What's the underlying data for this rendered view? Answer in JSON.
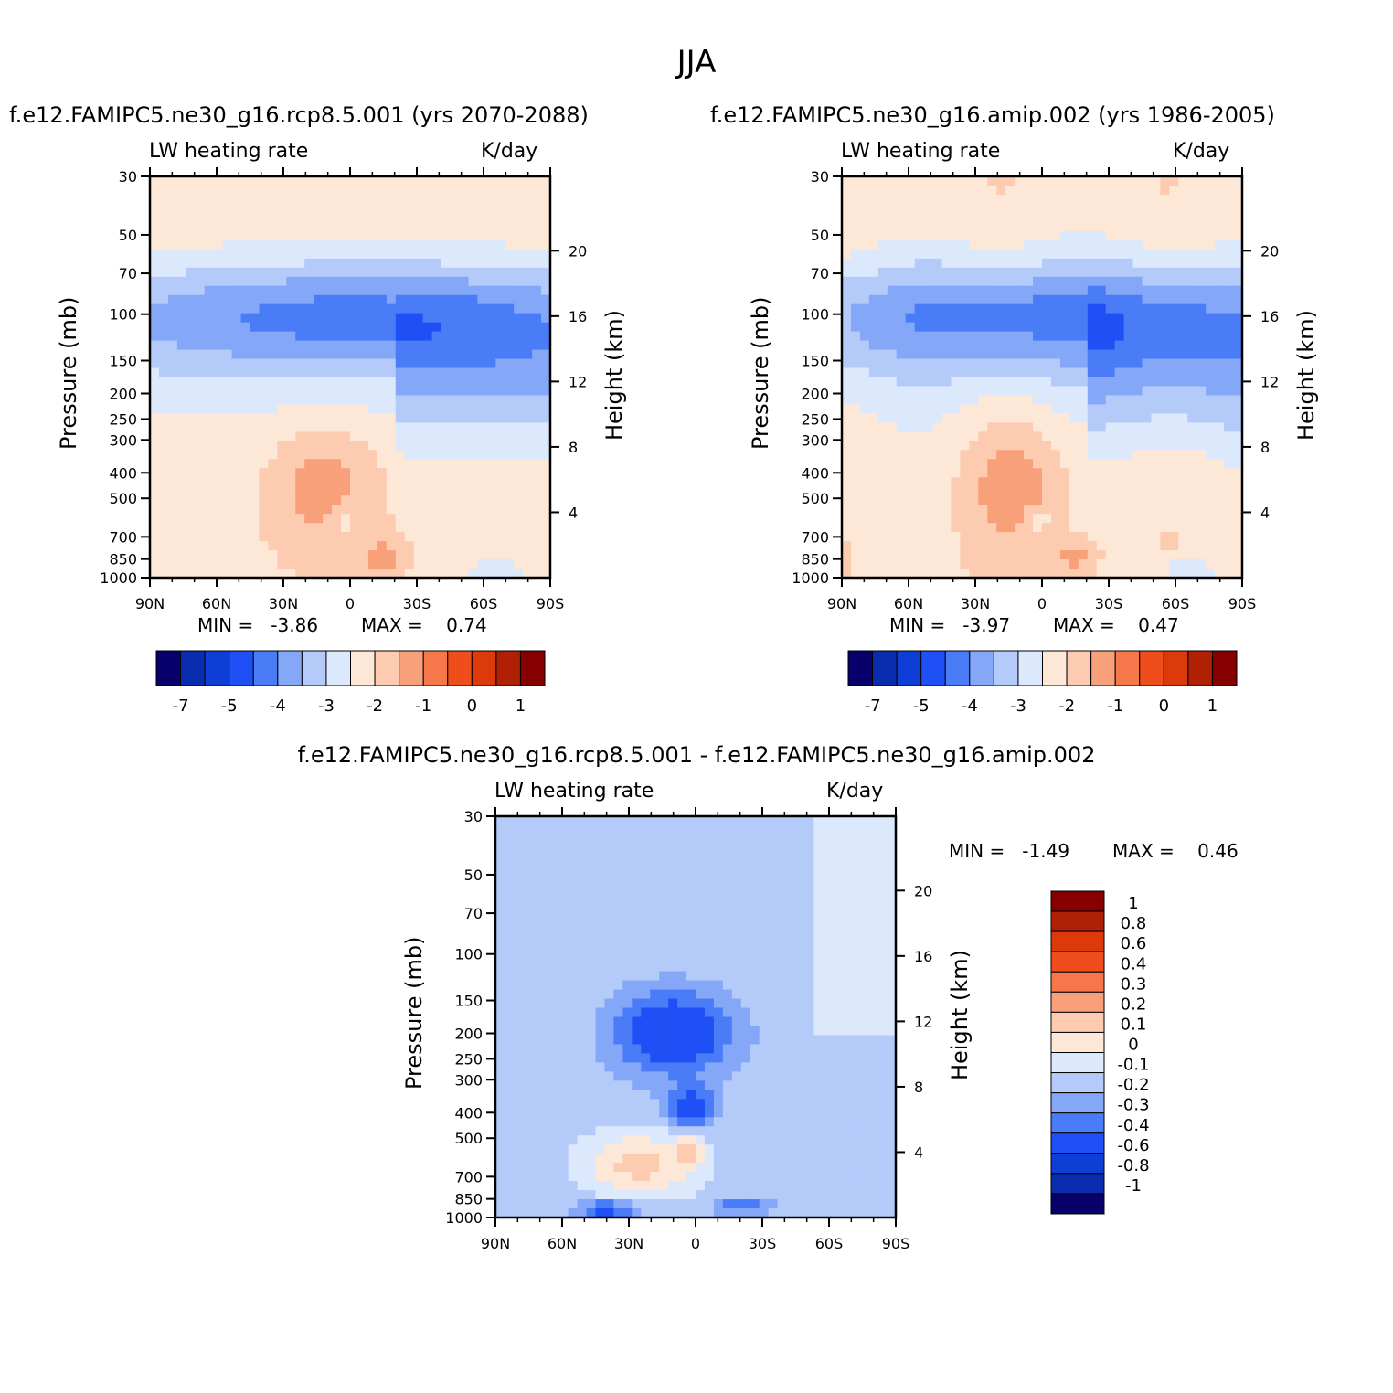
{
  "figure": {
    "title": "JJA",
    "panels": [
      {
        "id": "rcp",
        "subtitle": "f.e12.FAMIPC5.ne30_g16.rcp8.5.001 (yrs 2070-2088)",
        "left_label": "LW heating rate",
        "right_label": "K/day",
        "y_label": "Pressure (mb)",
        "y2_label": "Height (km)",
        "min_text": "MIN =   -3.86",
        "max_text": "MAX =    0.74"
      },
      {
        "id": "amip",
        "subtitle": "f.e12.FAMIPC5.ne30_g16.amip.002 (yrs 1986-2005)",
        "left_label": "LW heating rate",
        "right_label": "K/day",
        "y_label": "Pressure (mb)",
        "y2_label": "Height (km)",
        "min_text": "MIN =   -3.97",
        "max_text": "MAX =    0.47"
      },
      {
        "id": "diff",
        "subtitle": "f.e12.FAMIPC5.ne30_g16.rcp8.5.001 - f.e12.FAMIPC5.ne30_g16.amip.002",
        "left_label": "LW heating rate",
        "right_label": "K/day",
        "y_label": "Pressure (mb)",
        "y2_label": "Height (km)",
        "min_text": "MIN =   -1.49",
        "max_text": "MAX =    0.46"
      }
    ]
  },
  "chart_data": [
    {
      "type": "heatmap",
      "panel": "rcp",
      "x_ticks": [
        "90N",
        "60N",
        "30N",
        "0",
        "30S",
        "60S",
        "90S"
      ],
      "y_ticks": [
        "30",
        "50",
        "70",
        "100",
        "150",
        "200",
        "250",
        "300",
        "400",
        "500",
        "700",
        "850",
        "1000"
      ],
      "y_values": [
        30,
        50,
        70,
        100,
        150,
        200,
        250,
        300,
        400,
        500,
        700,
        850,
        1000
      ],
      "y2_ticks": [
        "20",
        "16",
        "12",
        "8",
        "4"
      ],
      "y2_values": [
        20,
        16,
        12,
        8,
        4
      ],
      "ylim": [
        1000,
        30
      ],
      "colorbar_labels": [
        "-7",
        "-5",
        "-4",
        "-3",
        "-2",
        "-1",
        "0",
        "1"
      ],
      "colorbar_colors": [
        "#08006b",
        "#0a2db0",
        "#0d3fd6",
        "#1e50f5",
        "#4a7cf7",
        "#84a7f7",
        "#b4cbfa",
        "#dce8fc",
        "#fde8d8",
        "#fccbb0",
        "#f7a07a",
        "#f5774a",
        "#f04d1c",
        "#dc3a0a",
        "#b02005",
        "#870000"
      ],
      "min": -3.86,
      "max": 0.74
    },
    {
      "type": "heatmap",
      "panel": "amip",
      "x_ticks": [
        "90N",
        "60N",
        "30N",
        "0",
        "30S",
        "60S",
        "90S"
      ],
      "y_ticks": [
        "30",
        "50",
        "70",
        "100",
        "150",
        "200",
        "250",
        "300",
        "400",
        "500",
        "700",
        "850",
        "1000"
      ],
      "y_values": [
        30,
        50,
        70,
        100,
        150,
        200,
        250,
        300,
        400,
        500,
        700,
        850,
        1000
      ],
      "y2_ticks": [
        "20",
        "16",
        "12",
        "8",
        "4"
      ],
      "y2_values": [
        20,
        16,
        12,
        8,
        4
      ],
      "ylim": [
        1000,
        30
      ],
      "colorbar_labels": [
        "-7",
        "-5",
        "-4",
        "-3",
        "-2",
        "-1",
        "0",
        "1"
      ],
      "colorbar_colors": [
        "#08006b",
        "#0a2db0",
        "#0d3fd6",
        "#1e50f5",
        "#4a7cf7",
        "#84a7f7",
        "#b4cbfa",
        "#dce8fc",
        "#fde8d8",
        "#fccbb0",
        "#f7a07a",
        "#f5774a",
        "#f04d1c",
        "#dc3a0a",
        "#b02005",
        "#870000"
      ],
      "min": -3.97,
      "max": 0.47
    },
    {
      "type": "heatmap",
      "panel": "diff",
      "x_ticks": [
        "90N",
        "60N",
        "30N",
        "0",
        "30S",
        "60S",
        "90S"
      ],
      "y_ticks": [
        "30",
        "50",
        "70",
        "100",
        "150",
        "200",
        "250",
        "300",
        "400",
        "500",
        "700",
        "850",
        "1000"
      ],
      "y_values": [
        30,
        50,
        70,
        100,
        150,
        200,
        250,
        300,
        400,
        500,
        700,
        850,
        1000
      ],
      "y2_ticks": [
        "20",
        "16",
        "12",
        "8",
        "4"
      ],
      "y2_values": [
        20,
        16,
        12,
        8,
        4
      ],
      "ylim": [
        1000,
        30
      ],
      "colorbar_labels": [
        "1",
        "0.8",
        "0.6",
        "0.4",
        "0.3",
        "0.2",
        "0.1",
        "0",
        "-0.1",
        "-0.2",
        "-0.3",
        "-0.4",
        "-0.6",
        "-0.8",
        "-1"
      ],
      "colorbar_colors": [
        "#870000",
        "#b02005",
        "#dc3a0a",
        "#f04d1c",
        "#f5774a",
        "#f7a07a",
        "#fccbb0",
        "#fde8d8",
        "#dce8fc",
        "#b4cbfa",
        "#84a7f7",
        "#4a7cf7",
        "#1e50f5",
        "#0d3fd6",
        "#0a2db0",
        "#08006b"
      ],
      "min": -1.49,
      "max": 0.46
    }
  ]
}
